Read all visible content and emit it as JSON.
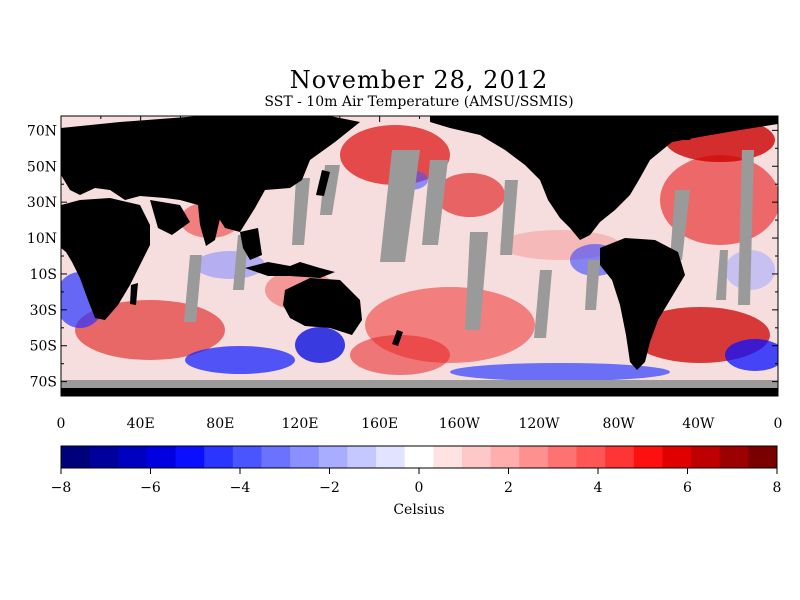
{
  "title": "November 28, 2012",
  "subtitle": "SST - 10m Air Temperature (AMSU/SSMIS)",
  "map": {
    "lat_labels": [
      "70N",
      "50N",
      "30N",
      "10N",
      "10S",
      "30S",
      "50S",
      "70S"
    ],
    "lat_values": [
      70,
      50,
      30,
      10,
      -10,
      -30,
      -50,
      -70
    ],
    "lon_labels": [
      "0",
      "40E",
      "80E",
      "120E",
      "160E",
      "160W",
      "120W",
      "80W",
      "40W",
      "0"
    ],
    "lon_values": [
      0,
      40,
      80,
      120,
      160,
      200,
      240,
      280,
      320,
      360
    ],
    "colors": {
      "land": "#000000",
      "no_data": "#9a9a9a",
      "frame": "#000000"
    }
  },
  "colorbar": {
    "min": -8,
    "max": 8,
    "tick_labels": [
      "-8",
      "-6",
      "-4",
      "-2",
      "0",
      "2",
      "4",
      "6",
      "8"
    ],
    "label": "Celsius",
    "colors": [
      "#00007a",
      "#00009c",
      "#0000c0",
      "#0000e0",
      "#0a10ff",
      "#2a35ff",
      "#4a55ff",
      "#6a72ff",
      "#8a90ff",
      "#a8adff",
      "#c5c8ff",
      "#e2e4ff",
      "#ffffff",
      "#ffe2e2",
      "#ffc8c8",
      "#ffadad",
      "#ff9090",
      "#ff7272",
      "#ff5555",
      "#ff3535",
      "#ff1010",
      "#e00000",
      "#c00000",
      "#9c0000",
      "#7a0000"
    ]
  }
}
